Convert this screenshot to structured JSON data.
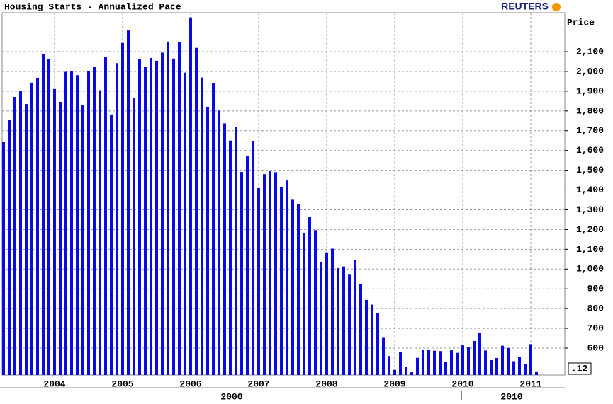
{
  "chart_data": {
    "type": "bar",
    "title": "Housing Starts - Annualized Pace",
    "brand": "REUTERS",
    "y_axis_label": "Price",
    "current_value_label": ".12",
    "color": "#0a0ae6",
    "grid": true,
    "categories": [
      null,
      null,
      null,
      null,
      null,
      null,
      null,
      null,
      null,
      "2004",
      null,
      null,
      null,
      null,
      null,
      null,
      null,
      null,
      null,
      null,
      null,
      "2005",
      null,
      null,
      null,
      null,
      null,
      null,
      null,
      null,
      null,
      null,
      null,
      "2006",
      null,
      null,
      null,
      null,
      null,
      null,
      null,
      null,
      null,
      null,
      null,
      "2007",
      null,
      null,
      null,
      null,
      null,
      null,
      null,
      null,
      null,
      null,
      null,
      "2008",
      null,
      null,
      null,
      null,
      null,
      null,
      null,
      null,
      null,
      null,
      null,
      "2009",
      null,
      null,
      null,
      null,
      null,
      null,
      null,
      null,
      null,
      null,
      null,
      "2010",
      null,
      null,
      null,
      null,
      null,
      null,
      null,
      null,
      null,
      null,
      null,
      "2011",
      null
    ],
    "values": [
      1645,
      1753,
      1871,
      1903,
      1835,
      1943,
      1968,
      2086,
      2061,
      1911,
      1846,
      1998,
      2003,
      1981,
      1828,
      2002,
      2024,
      1905,
      2072,
      1782,
      2042,
      2144,
      2207,
      1864,
      2061,
      2025,
      2068,
      2054,
      2095,
      2151,
      2065,
      2147,
      1994,
      2273,
      2119,
      1969,
      1821,
      1942,
      1802,
      1737,
      1650,
      1720,
      1491,
      1570,
      1649,
      1409,
      1480,
      1495,
      1490,
      1415,
      1448,
      1354,
      1330,
      1183,
      1264,
      1197,
      1037,
      1084,
      1103,
      1005,
      1013,
      975,
      1046,
      923,
      844,
      820,
      777,
      652,
      560,
      490,
      582,
      505,
      478,
      551,
      590,
      593,
      587,
      585,
      529,
      589,
      576,
      614,
      606,
      636,
      679,
      588,
      539,
      550,
      612,
      601,
      534,
      555,
      520,
      620,
      479
    ],
    "secondary_x_labels": [
      "2000",
      "2010"
    ],
    "ylim": [
      464,
      2297
    ],
    "yticks": [
      600,
      700,
      800,
      900,
      {
        "value": 1000,
        "label": "1,000"
      },
      {
        "value": 1100,
        "label": "1,100"
      },
      {
        "value": 1200,
        "label": "1,200"
      },
      {
        "value": 1300,
        "label": "1,300"
      },
      {
        "value": 1400,
        "label": "1,400"
      },
      {
        "value": 1500,
        "label": "1,500"
      },
      {
        "value": 1600,
        "label": "1,600"
      },
      {
        "value": 1700,
        "label": "1,700"
      },
      {
        "value": 1800,
        "label": "1,800"
      },
      {
        "value": 1900,
        "label": "1,900"
      },
      {
        "value": 2000,
        "label": "2,000"
      },
      {
        "value": 2100,
        "label": "2,100"
      }
    ]
  }
}
